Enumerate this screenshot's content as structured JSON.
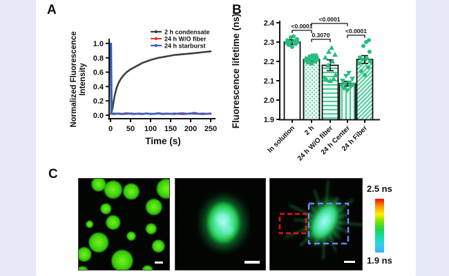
{
  "panels": {
    "a": "A",
    "b": "B",
    "c": "C"
  },
  "chart_data": [
    {
      "type": "line",
      "panel": "A",
      "xlabel": "Time (s)",
      "ylabel": "Normalized Fluorescence Intensity",
      "ylabel_lines": [
        "Normalized Fluorescence",
        "Intensity"
      ],
      "xlim": [
        0,
        250
      ],
      "ylim": [
        0.0,
        1.0
      ],
      "xticks": [
        0,
        50,
        100,
        150,
        200,
        250
      ],
      "yticks": [
        "0.0",
        "0.2",
        "0.4",
        "0.6",
        "0.8",
        "1.0"
      ],
      "legend_position": "top-right",
      "series": [
        {
          "name": "2 h condensate",
          "color": "#3d3d3d",
          "x": [
            0,
            2,
            3,
            5,
            8,
            10,
            13,
            15,
            20,
            25,
            30,
            35,
            40,
            50,
            60,
            70,
            80,
            90,
            100,
            120,
            140,
            160,
            180,
            200,
            225,
            250
          ],
          "y": [
            1.0,
            0.03,
            0.05,
            0.1,
            0.2,
            0.27,
            0.33,
            0.38,
            0.45,
            0.5,
            0.54,
            0.57,
            0.6,
            0.64,
            0.67,
            0.7,
            0.73,
            0.75,
            0.77,
            0.8,
            0.82,
            0.84,
            0.85,
            0.86,
            0.875,
            0.89
          ]
        },
        {
          "name": "24 h W/O fiber",
          "color": "#e03a2f",
          "x": [
            0,
            10,
            20,
            30,
            40,
            50,
            60,
            70,
            80,
            90,
            100,
            110,
            120,
            130,
            140,
            150,
            160,
            170,
            180,
            190,
            200,
            210,
            220,
            230,
            240,
            250
          ],
          "y": [
            0.02,
            0.015,
            0.025,
            0.02,
            0.03,
            0.02,
            0.015,
            0.025,
            0.02,
            0.025,
            0.015,
            0.02,
            0.03,
            0.02,
            0.025,
            0.02,
            0.015,
            0.025,
            0.03,
            0.02,
            0.025,
            0.035,
            0.02,
            0.025,
            0.02,
            0.025
          ]
        },
        {
          "name": "24 h starburst",
          "color": "#2e5fd0",
          "x": [
            0,
            1.5,
            3,
            10,
            20,
            30,
            40,
            50,
            60,
            70,
            80,
            90,
            100,
            110,
            120,
            130,
            140,
            150,
            160,
            170,
            180,
            190,
            200,
            210,
            220,
            230,
            240,
            250
          ],
          "y": [
            1.0,
            1.0,
            0.02,
            0.025,
            0.02,
            0.015,
            0.02,
            0.025,
            0.02,
            0.02,
            0.015,
            0.025,
            0.02,
            0.02,
            0.025,
            0.015,
            0.02,
            0.02,
            0.025,
            0.02,
            0.015,
            0.02,
            0.025,
            0.02,
            0.02,
            0.015,
            0.02,
            0.02
          ]
        }
      ]
    },
    {
      "type": "bar",
      "panel": "B",
      "ylabel": "Fluorescence  lifetime (ns)",
      "ylim": [
        1.9,
        2.4
      ],
      "yticks": [
        "1.9",
        "2.0",
        "2.1",
        "2.2",
        "2.3",
        "2.4"
      ],
      "categories": [
        "In solution",
        "2 h",
        "24 h W/O fiber",
        "24 h Center",
        "24 h Fiber"
      ],
      "values": [
        2.3,
        2.21,
        2.18,
        2.085,
        2.21
      ],
      "errors": [
        0.012,
        0.01,
        0.028,
        0.012,
        0.02
      ],
      "bar_styles": [
        "plain",
        "dots",
        "hlines",
        "vlines",
        "diag"
      ],
      "marker_shapes": [
        "circle",
        "square",
        "triangle-up",
        "triangle-down",
        "circle"
      ],
      "marker_color": "#26bd7e",
      "bar_edge_color": "#111111",
      "points": [
        [
          2.275,
          2.285,
          2.29,
          2.295,
          2.3,
          2.3,
          2.305,
          2.31,
          2.315,
          2.325,
          2.33
        ],
        [
          2.19,
          2.195,
          2.2,
          2.205,
          2.21,
          2.21,
          2.215,
          2.215,
          2.22,
          2.225,
          2.23,
          2.23
        ],
        [
          2.1,
          2.105,
          2.11,
          2.115,
          2.13,
          2.18,
          2.2,
          2.22,
          2.235,
          2.25,
          2.27
        ],
        [
          2.05,
          2.06,
          2.07,
          2.075,
          2.08,
          2.085,
          2.09,
          2.1,
          2.11,
          2.125,
          2.14
        ],
        [
          2.13,
          2.15,
          2.17,
          2.19,
          2.2,
          2.21,
          2.215,
          2.22,
          2.25,
          2.28,
          2.3,
          2.31
        ]
      ],
      "significance": [
        {
          "a": 0,
          "b": 1,
          "label": "<0.0001"
        },
        {
          "a": 1,
          "b": 2,
          "label": "0.3070"
        },
        {
          "a": 1,
          "b": 3,
          "label": "<0.0001"
        },
        {
          "a": 3,
          "b": 4,
          "label": "<0.0001"
        }
      ]
    }
  ],
  "panel_c": {
    "colorbar": {
      "top_label": "2.5 ns",
      "bottom_label": "1.9 ns",
      "colors": [
        "#ee1000",
        "#ff9800",
        "#fdf000",
        "#7ae000",
        "#1ed24e",
        "#14dfa6",
        "#2fd0f0",
        "#41aef5"
      ]
    },
    "droplet_color": "#3fd513",
    "images": {
      "condensates": {
        "droplets": [
          [
            22,
            6,
            8
          ],
          [
            38,
            12,
            10
          ],
          [
            58,
            14,
            9
          ],
          [
            97,
            11,
            11
          ],
          [
            30,
            33,
            6
          ],
          [
            83,
            31,
            9
          ],
          [
            38,
            48,
            8
          ],
          [
            12,
            50,
            4
          ],
          [
            80,
            55,
            6
          ],
          [
            22,
            70,
            11
          ],
          [
            58,
            63,
            5
          ],
          [
            88,
            74,
            7
          ],
          [
            6,
            83,
            8
          ],
          [
            48,
            90,
            12
          ],
          [
            4,
            103,
            7
          ],
          [
            76,
            101,
            6
          ]
        ]
      },
      "starburst": {
        "ray_color": "#2fae4d",
        "red_box_color": "#ee1111",
        "blue_box_color": "#6f86f2"
      }
    }
  }
}
